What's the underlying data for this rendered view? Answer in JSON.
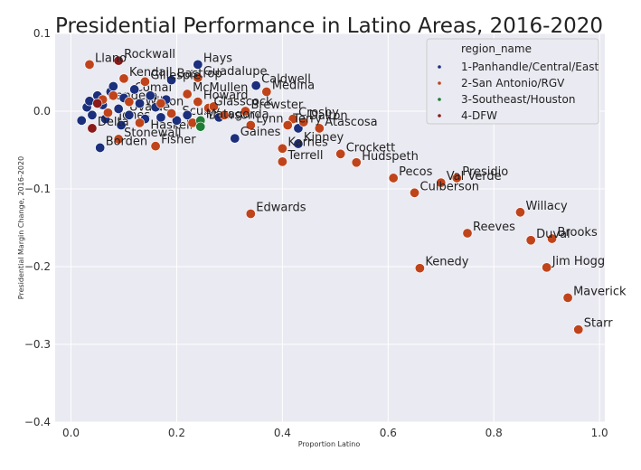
{
  "chart_data": {
    "type": "scatter",
    "title": "Presidential Performance in Latino Areas, 2016-2020",
    "xlabel": "Proportion Latino",
    "ylabel": "Presidential Margin Change, 2016-2020",
    "xlim": [
      -0.03,
      1.01
    ],
    "ylim": [
      -0.4,
      0.1
    ],
    "xticks": [
      0.0,
      0.2,
      0.4,
      0.6,
      0.8,
      1.0
    ],
    "xtick_labels": [
      "0.0",
      "0.2",
      "0.4",
      "0.6",
      "0.8",
      "1.0"
    ],
    "yticks": [
      0.1,
      0.0,
      -0.1,
      -0.2,
      -0.3,
      -0.4
    ],
    "ytick_labels": [
      "0.1",
      "0.0",
      "−0.1",
      "−0.2",
      "−0.3",
      "−0.4"
    ],
    "grid": true,
    "legend": {
      "title": "region_name",
      "placement": "top-right",
      "entries": [
        {
          "name": "1-Panhandle/Central/East",
          "color": "#1b2f7d"
        },
        {
          "name": "2-San Antonio/RGV",
          "color": "#c0441b"
        },
        {
          "name": "3-Southeast/Houston",
          "color": "#1e7d34"
        },
        {
          "name": "4-DFW",
          "color": "#8b1a1a"
        }
      ]
    },
    "series": [
      {
        "name": "1-Panhandle/Central/East",
        "color": "#1b2f7d",
        "points": [
          {
            "x": 0.24,
            "y": 0.06,
            "label": "Hays"
          },
          {
            "x": 0.35,
            "y": 0.033,
            "label": "Caldwell"
          },
          {
            "x": 0.19,
            "y": 0.04,
            "label": "Bastrop"
          },
          {
            "x": 0.31,
            "y": -0.035,
            "label": "Gaines"
          },
          {
            "x": 0.43,
            "y": -0.042,
            "label": "Kinney"
          },
          {
            "x": 0.43,
            "y": -0.022,
            "label": ""
          },
          {
            "x": 0.055,
            "y": -0.047,
            "label": "Borden"
          },
          {
            "x": 0.02,
            "y": -0.012,
            "label": ""
          },
          {
            "x": 0.03,
            "y": 0.005,
            "label": ""
          },
          {
            "x": 0.035,
            "y": 0.013,
            "label": ""
          },
          {
            "x": 0.04,
            "y": -0.005,
            "label": ""
          },
          {
            "x": 0.05,
            "y": 0.02,
            "label": ""
          },
          {
            "x": 0.06,
            "y": 0.008,
            "label": ""
          },
          {
            "x": 0.065,
            "y": -0.01,
            "label": ""
          },
          {
            "x": 0.075,
            "y": 0.025,
            "label": ""
          },
          {
            "x": 0.08,
            "y": 0.032,
            "label": ""
          },
          {
            "x": 0.09,
            "y": 0.003,
            "label": ""
          },
          {
            "x": 0.095,
            "y": -0.018,
            "label": ""
          },
          {
            "x": 0.1,
            "y": 0.017,
            "label": ""
          },
          {
            "x": 0.11,
            "y": -0.005,
            "label": ""
          },
          {
            "x": 0.12,
            "y": 0.028,
            "label": ""
          },
          {
            "x": 0.13,
            "y": 0.01,
            "label": ""
          },
          {
            "x": 0.14,
            "y": -0.01,
            "label": ""
          },
          {
            "x": 0.15,
            "y": 0.02,
            "label": ""
          },
          {
            "x": 0.16,
            "y": 0.005,
            "label": ""
          },
          {
            "x": 0.17,
            "y": -0.008,
            "label": ""
          },
          {
            "x": 0.18,
            "y": 0.015,
            "label": ""
          },
          {
            "x": 0.2,
            "y": -0.012,
            "label": ""
          },
          {
            "x": 0.22,
            "y": -0.005,
            "label": ""
          },
          {
            "x": 0.26,
            "y": 0.002,
            "label": ""
          },
          {
            "x": 0.28,
            "y": -0.008,
            "label": ""
          }
        ]
      },
      {
        "name": "2-San Antonio/RGV",
        "color": "#c0441b",
        "points": [
          {
            "x": 0.035,
            "y": 0.06,
            "label": "Llano"
          },
          {
            "x": 0.24,
            "y": 0.043,
            "label": "Guadalupe"
          },
          {
            "x": 0.37,
            "y": 0.025,
            "label": "Medina"
          },
          {
            "x": 0.1,
            "y": 0.042,
            "label": "Kendall"
          },
          {
            "x": 0.14,
            "y": 0.038,
            "label": "Gillespie"
          },
          {
            "x": 0.22,
            "y": 0.022,
            "label": "McMullen"
          },
          {
            "x": 0.24,
            "y": 0.012,
            "label": "Howard"
          },
          {
            "x": 0.26,
            "y": 0.004,
            "label": "Glasscock"
          },
          {
            "x": 0.33,
            "y": 0.0,
            "label": "Brewster"
          },
          {
            "x": 0.34,
            "y": -0.018,
            "label": "Lynn"
          },
          {
            "x": 0.42,
            "y": -0.01,
            "label": "Crosby"
          },
          {
            "x": 0.44,
            "y": -0.014,
            "label": "Dalton"
          },
          {
            "x": 0.41,
            "y": -0.018,
            "label": "Terry"
          },
          {
            "x": 0.47,
            "y": -0.022,
            "label": "Atascosa"
          },
          {
            "x": 0.4,
            "y": -0.048,
            "label": "Karnes"
          },
          {
            "x": 0.4,
            "y": -0.065,
            "label": "Terrell"
          },
          {
            "x": 0.51,
            "y": -0.055,
            "label": "Crockett"
          },
          {
            "x": 0.54,
            "y": -0.066,
            "label": "Hudspeth"
          },
          {
            "x": 0.61,
            "y": -0.086,
            "label": "Pecos"
          },
          {
            "x": 0.73,
            "y": -0.086,
            "label": "Presidio"
          },
          {
            "x": 0.7,
            "y": -0.092,
            "label": "Val Verde"
          },
          {
            "x": 0.65,
            "y": -0.105,
            "label": "Culberson"
          },
          {
            "x": 0.09,
            "y": -0.036,
            "label": "Stonewall"
          },
          {
            "x": 0.16,
            "y": -0.045,
            "label": "Fisher"
          },
          {
            "x": 0.34,
            "y": -0.132,
            "label": "Edwards"
          },
          {
            "x": 0.85,
            "y": -0.13,
            "label": "Willacy"
          },
          {
            "x": 0.75,
            "y": -0.157,
            "label": "Reeves"
          },
          {
            "x": 0.87,
            "y": -0.166,
            "label": "Duval"
          },
          {
            "x": 0.91,
            "y": -0.164,
            "label": "Brooks"
          },
          {
            "x": 0.66,
            "y": -0.202,
            "label": "Kenedy"
          },
          {
            "x": 0.9,
            "y": -0.201,
            "label": "Jim Hogg"
          },
          {
            "x": 0.94,
            "y": -0.24,
            "label": "Maverick"
          },
          {
            "x": 0.96,
            "y": -0.281,
            "label": "Starr"
          },
          {
            "x": 0.06,
            "y": 0.015,
            "label": ""
          },
          {
            "x": 0.07,
            "y": -0.002,
            "label": ""
          },
          {
            "x": 0.08,
            "y": 0.02,
            "label": ""
          },
          {
            "x": 0.11,
            "y": 0.012,
            "label": ""
          },
          {
            "x": 0.13,
            "y": -0.015,
            "label": ""
          },
          {
            "x": 0.17,
            "y": 0.01,
            "label": ""
          },
          {
            "x": 0.19,
            "y": -0.003,
            "label": ""
          },
          {
            "x": 0.23,
            "y": -0.015,
            "label": ""
          },
          {
            "x": 0.27,
            "y": 0.006,
            "label": ""
          },
          {
            "x": 0.29,
            "y": -0.005,
            "label": ""
          }
        ]
      },
      {
        "name": "3-Southeast/Houston",
        "color": "#1e7d34",
        "points": [
          {
            "x": 0.245,
            "y": -0.012,
            "label": "Matagorda"
          },
          {
            "x": 0.245,
            "y": -0.02,
            "label": ""
          }
        ]
      },
      {
        "name": "4-DFW",
        "color": "#8b1a1a",
        "points": [
          {
            "x": 0.09,
            "y": 0.065,
            "label": "Rockwall"
          },
          {
            "x": 0.04,
            "y": -0.022,
            "label": "Delta"
          },
          {
            "x": 0.05,
            "y": 0.01,
            "label": ""
          }
        ]
      }
    ],
    "crowded_labels": [
      "Comal",
      "Bandera",
      "Uvalde",
      "Wilson",
      "Jones",
      "Haskell",
      "Scurry",
      "Dawson"
    ]
  }
}
